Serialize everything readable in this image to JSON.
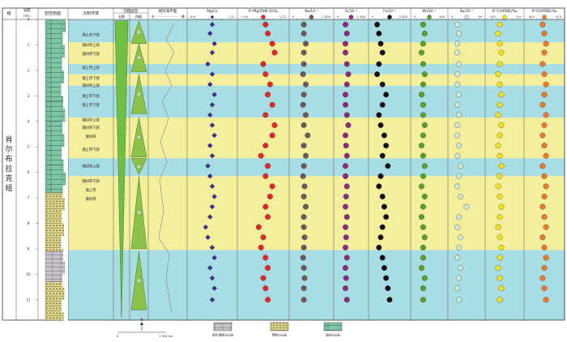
{
  "headers": {
    "formation": "组",
    "depth": "深度\n（m）",
    "lithology": "岩性剖面",
    "environment": "沉积环境",
    "cycle": "沉积旋回",
    "cycle_long": "长期",
    "cycle_mid": "四级",
    "sea_level": "相对海平面",
    "sea_level_high": "升",
    "sea_level_low": "降"
  },
  "formation_name": "肖尔布拉克组",
  "depth_ticks": [
    "0",
    "1",
    "2",
    "3",
    "4",
    "5",
    "6",
    "7",
    "8",
    "9",
    "10",
    "11"
  ],
  "environment_labels": [
    "潮上带下部",
    "潮间带上部",
    "潮间带下部",
    "潮上带上部",
    "潮上带下部",
    "潮间带上部",
    "潮上带下部",
    "潮上带下部",
    "潮间带上部",
    "潮间带下部",
    "潮间带",
    "潮上带下部",
    "潮间带上部",
    "潮间带下部",
    "潮上带",
    "潮间带"
  ],
  "zone_colors": {
    "supratidal": "#f3ef9c",
    "intertidal": "#a9dde4"
  },
  "geochem_columns": [
    {
      "label": "Mg/Ca",
      "ticks": [
        "0.6",
        "1.2"
      ],
      "color": "#3b2f8f",
      "shape": "diamond"
    },
    {
      "label": "δ²⁶Mg(DSM-3)/‰",
      "ticks": [
        "−1.8",
        "−1.2"
      ],
      "color": "#e5262a",
      "shape": "circle"
    },
    {
      "label": "Na/10⁻⁶",
      "ticks": [
        "0",
        "1 000"
      ],
      "color": "#6b5a55",
      "shape": "circle"
    },
    {
      "label": "Sr/10⁻⁶",
      "ticks": [
        "0",
        "1 500"
      ],
      "color": "#8b2b7c",
      "shape": "circle"
    },
    {
      "label": "Fe/10⁻⁶",
      "ticks": [
        "0",
        "2 000"
      ],
      "color": "#111111",
      "shape": "circle"
    },
    {
      "label": "Mn/10⁻⁶",
      "ticks": [
        "0",
        "500"
      ],
      "color": "#5aa02c",
      "shape": "circle"
    },
    {
      "label": "Ba/10⁻⁶",
      "ticks": [
        "0",
        "50"
      ],
      "color": "#cfe8d4",
      "shape": "circle"
    },
    {
      "label": "δ¹³C(VPDB)/‰",
      "ticks": [
        "−3.0",
        "3.0"
      ],
      "color": "#f2e41b",
      "shape": "circle"
    },
    {
      "label": "δ¹⁸O(VPDB)/‰",
      "ticks": [
        "−8.0",
        "−4.0"
      ],
      "color": "#ec7b2e",
      "shape": "circle"
    }
  ],
  "scale_bar": {
    "start": "0",
    "end": "1 500 km",
    "north": "N"
  },
  "legend": [
    {
      "label": "层状/叠层白云岩",
      "pattern": "bedded"
    },
    {
      "label": "颗粒白云岩",
      "pattern": "grainstone"
    },
    {
      "label": "藻纹白云岩",
      "pattern": "algal"
    }
  ]
}
